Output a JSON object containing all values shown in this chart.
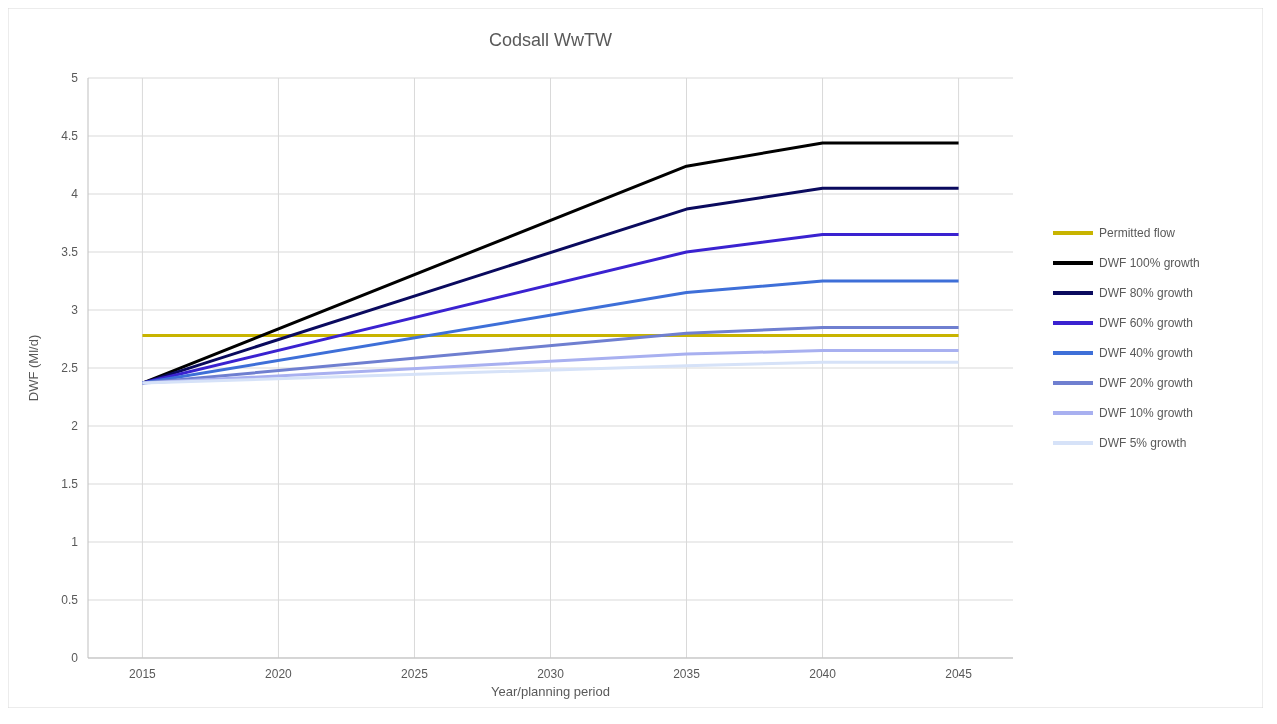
{
  "chart_data": {
    "type": "line",
    "title": "Codsall WwTW",
    "xlabel": "Year/planning period",
    "ylabel": "DWF (Ml/d)",
    "xlim": [
      2013,
      2047
    ],
    "xticks": [
      2015,
      2020,
      2025,
      2030,
      2035,
      2040,
      2045
    ],
    "ylim": [
      0,
      5
    ],
    "yticks": [
      0,
      0.5,
      1,
      1.5,
      2,
      2.5,
      3,
      3.5,
      4,
      4.5,
      5
    ],
    "grid": true,
    "legend": "right",
    "marker": "none",
    "line_style": "solid",
    "series": [
      {
        "name": "Permitted flow",
        "color": "#c8b400",
        "x": [
          2015,
          2045
        ],
        "values": [
          2.78,
          2.78
        ]
      },
      {
        "name": "DWF 100% growth",
        "color": "#000000",
        "x": [
          2015,
          2035,
          2040,
          2045
        ],
        "values": [
          2.37,
          4.24,
          4.44,
          4.44
        ]
      },
      {
        "name": "DWF 80% growth",
        "color": "#0a0a5e",
        "x": [
          2015,
          2035,
          2040,
          2045
        ],
        "values": [
          2.37,
          3.87,
          4.05,
          4.05
        ]
      },
      {
        "name": "DWF 60% growth",
        "color": "#3a22d0",
        "x": [
          2015,
          2035,
          2040,
          2045
        ],
        "values": [
          2.37,
          3.5,
          3.65,
          3.65
        ]
      },
      {
        "name": "DWF 40% growth",
        "color": "#3e6fd8",
        "x": [
          2015,
          2035,
          2040,
          2045
        ],
        "values": [
          2.37,
          3.15,
          3.25,
          3.25
        ]
      },
      {
        "name": "DWF 20% growth",
        "color": "#6f7fd0",
        "x": [
          2015,
          2035,
          2040,
          2045
        ],
        "values": [
          2.37,
          2.8,
          2.85,
          2.85
        ]
      },
      {
        "name": "DWF 10% growth",
        "color": "#a8b0f0",
        "x": [
          2015,
          2035,
          2040,
          2045
        ],
        "values": [
          2.37,
          2.62,
          2.65,
          2.65
        ]
      },
      {
        "name": "DWF 5% growth",
        "color": "#d6e2f8",
        "x": [
          2015,
          2035,
          2040,
          2045
        ],
        "values": [
          2.37,
          2.52,
          2.55,
          2.55
        ]
      }
    ]
  }
}
